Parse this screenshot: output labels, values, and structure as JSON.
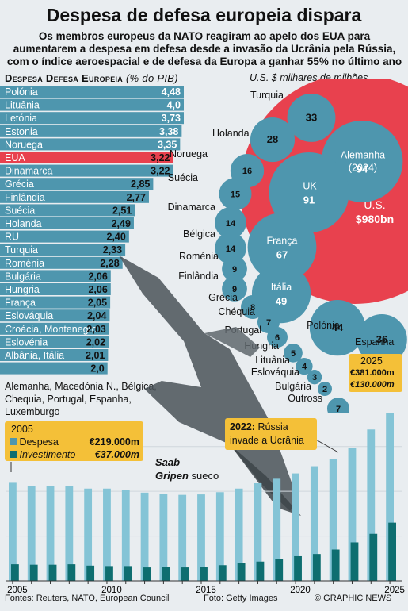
{
  "title": "Despesa de defesa europeia dispara",
  "subtitle": "Os membros europeus da NATO reagiram ao apelo dos EUA para aumentarem a despesa em defesa desde a invasão da Ucrânia pela Rússia, com o índice aeroespacial e de defesa da Europa a ganhar 55% no último ano",
  "hbar_chart": {
    "title": "Despesa Defesa Europeia",
    "unit": "(% do PIB)",
    "rest_note": "Alemanha, Macedónia N., Bélgica, Chequia, Portugal, Espanha, Luxemburgo",
    "highlight_color": "#e8414e",
    "bar_color": "#4e96ae"
  },
  "bubble_chart": {
    "unit": "U.S. $ milhares de milhões",
    "us_label": "U.S.",
    "us_value": "$980bn"
  },
  "line_note": {
    "year": "2005",
    "despesa_label": "Despesa",
    "despesa_value": "€219.000m",
    "invest_label": "Investimento",
    "invest_value": "€37.000m"
  },
  "note_2022": {
    "year": "2022:",
    "text1": "Rússia",
    "text2": "invade a Ucrânia"
  },
  "note_2025": {
    "year": "2025",
    "despesa_value": "€381.000m",
    "invest_value": "€130.000m"
  },
  "photo_caption": {
    "name1": "Saab",
    "name2": "Gripen",
    "desc": "sueco"
  },
  "footer": {
    "sources": "Fontes: Reuters, NATO, European Council",
    "photo": "Foto: Getty Images",
    "credit": "© GRAPHIC NEWS"
  },
  "chart_data": [
    {
      "type": "bar",
      "orientation": "horizontal",
      "title": "Despesa Defesa Europeia",
      "unit": "% do PIB",
      "categories": [
        "Polónia",
        "Lituânia",
        "Letónia",
        "Estonia",
        "Noruega",
        "EUA",
        "Dinamarca",
        "Grécia",
        "Finlândia",
        "Suécia",
        "Holanda",
        "RU",
        "Turquia",
        "Roménia",
        "Bulgária",
        "Hungria",
        "França",
        "Eslováquia",
        "Croácia, Montenegro",
        "Eslovénia",
        "Albânia, Itália",
        ""
      ],
      "labels": [
        "4,48",
        "4,0",
        "3,73",
        "3,38",
        "3,35",
        "3,22",
        "3,22",
        "2,85",
        "2,77",
        "2,51",
        "2,49",
        "2,40",
        "2,33",
        "2,28",
        "2,06",
        "2,06",
        "2,05",
        "2,04",
        "2,03",
        "2,02",
        "2,01",
        "2,0"
      ],
      "values": [
        4.48,
        4.0,
        3.73,
        3.38,
        3.35,
        3.22,
        3.22,
        2.85,
        2.77,
        2.51,
        2.49,
        2.4,
        2.33,
        2.28,
        2.06,
        2.06,
        2.05,
        2.04,
        2.03,
        2.02,
        2.01,
        2.0
      ],
      "highlight": "EUA"
    },
    {
      "type": "scatter",
      "subtype": "bubble",
      "unit": "U.S. $ milhares de milhões",
      "series": [
        {
          "label": "Turquia",
          "value": "33"
        },
        {
          "label": "",
          "value": "28"
        },
        {
          "label": "Alemanha",
          "label2": "(2024)",
          "value": "94"
        },
        {
          "label": "Holanda",
          "value": ""
        },
        {
          "label": "Noruega",
          "value": "16"
        },
        {
          "label": "UK",
          "value": "91"
        },
        {
          "label": "Suécia",
          "value": "15"
        },
        {
          "label": "Dinamarca",
          "value": "14"
        },
        {
          "label": "França",
          "value": "67"
        },
        {
          "label": "Bélgica",
          "value": "14"
        },
        {
          "label": "Roménia",
          "value": "9"
        },
        {
          "label": "Itália",
          "value": "49"
        },
        {
          "label": "Finlândia",
          "value": "9"
        },
        {
          "label": "Grécia",
          "value": "8"
        },
        {
          "label": "Chéquia",
          "value": "7"
        },
        {
          "label": "",
          "value": "44"
        },
        {
          "label": "",
          "value": "36"
        },
        {
          "label": "Portugal",
          "value": "6"
        },
        {
          "label": "Polónia",
          "value": ""
        },
        {
          "label": "Hungria",
          "value": "5"
        },
        {
          "label": "Lituânia",
          "value": "4"
        },
        {
          "label": "Eslováquia",
          "value": "3"
        },
        {
          "label": "Bulgária",
          "value": "2"
        },
        {
          "label": "Outross",
          "value": "7"
        },
        {
          "label": "Espanha",
          "value": ""
        }
      ]
    },
    {
      "type": "bar",
      "x": [
        2005,
        2006,
        2007,
        2008,
        2009,
        2010,
        2011,
        2012,
        2013,
        2014,
        2015,
        2016,
        2017,
        2018,
        2019,
        2020,
        2021,
        2022,
        2023,
        2024,
        2025
      ],
      "x_ticks": [
        "2005",
        "2010",
        "2015",
        "2020",
        "2025"
      ],
      "series": [
        {
          "name": "Despesa",
          "values": [
            219,
            212,
            211,
            212,
            206,
            206,
            203,
            197,
            194,
            192,
            193,
            198,
            206,
            218,
            228,
            240,
            256,
            272,
            297,
            338,
            381
          ]
        },
        {
          "name": "Investimento",
          "values": [
            37,
            36,
            36,
            37,
            34,
            33,
            33,
            30,
            31,
            30,
            31,
            35,
            39,
            43,
            48,
            55,
            60,
            70,
            86,
            105,
            130
          ]
        }
      ],
      "ylim": [
        0,
        420
      ]
    }
  ]
}
